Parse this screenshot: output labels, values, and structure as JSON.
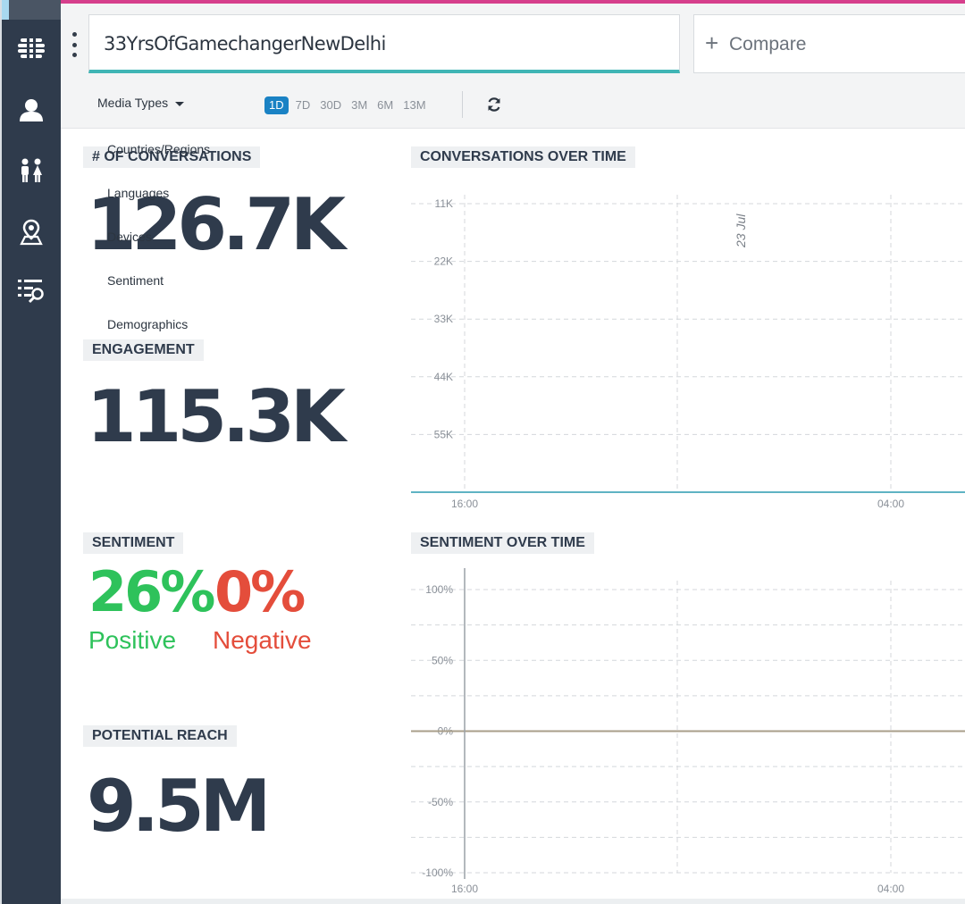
{
  "query": "33YrsOfGamechangerNewDelhi",
  "compare": {
    "plus": "+",
    "label": "Compare"
  },
  "filters": {
    "media_types": "Media Types"
  },
  "ranges": [
    "1D",
    "7D",
    "30D",
    "3M",
    "6M",
    "13M"
  ],
  "active_range": "1D",
  "menu": [
    "Countries/Regions",
    "Languages",
    "Devices",
    "Sentiment",
    "Demographics"
  ],
  "sidebar": {
    "items": [
      "hashtag-icon",
      "user-icon",
      "demographics-icon",
      "location-icon",
      "search-list-icon"
    ]
  },
  "stats": {
    "conversations": {
      "label": "# OF CONVERSATIONS",
      "value": "126.7K"
    },
    "engagement": {
      "label": "ENGAGEMENT",
      "value": "115.3K"
    },
    "sentiment": {
      "label": "SENTIMENT",
      "positive": "26%",
      "positive_label": "Positive",
      "negative": "0%",
      "negative_label": "Negative"
    },
    "reach": {
      "label": "POTENTIAL REACH",
      "value": "9.5M"
    }
  },
  "colors": {
    "accent": "#1a82c4",
    "positive": "#2ec25b",
    "negative": "#e44d3b",
    "nav_bg": "#2f3b4c",
    "teal": "#3fb5b5"
  },
  "chart_data": [
    {
      "type": "line",
      "title": "CONVERSATIONS OVER TIME",
      "x_ticks": [
        "16:00",
        "04:00"
      ],
      "y_ticks": [
        "11K",
        "22K",
        "33K",
        "44K",
        "55K"
      ],
      "ylim": [
        0,
        55000
      ],
      "annotations": [
        "23 Jul"
      ],
      "series": [
        {
          "values": [
            0,
            0
          ]
        }
      ],
      "grid": true
    },
    {
      "type": "line",
      "title": "SENTIMENT OVER TIME",
      "x_ticks": [
        "16:00",
        "04:00"
      ],
      "y_ticks": [
        "100%",
        "50%",
        "0%",
        "-50%",
        "-100%"
      ],
      "ylim": [
        -100,
        100
      ],
      "series": [
        {
          "values": [
            0,
            0
          ]
        }
      ],
      "grid": true
    }
  ]
}
